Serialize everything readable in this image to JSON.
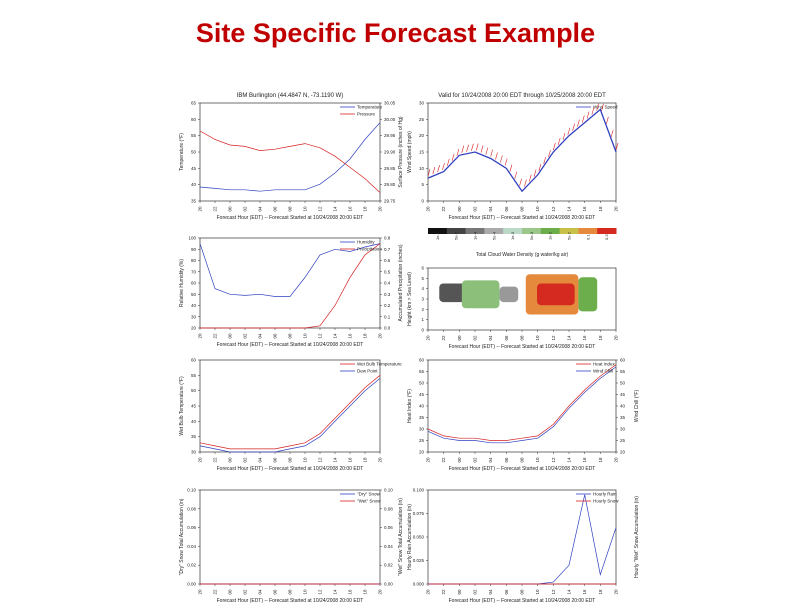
{
  "slide_title": "Site Specific Forecast Example",
  "colors": {
    "title": "#c00000",
    "red_series": "#d62020",
    "blue_series": "#3040c0"
  },
  "chart_data": [
    {
      "id": "temp_pressure",
      "type": "line",
      "title": "IBM Burlington (44.4847 N, -73.1190 W)",
      "xlabel": "Forecast Hour (EDT) -- Forecast Started at 10/24/2008 20:00 EDT",
      "ylabel": "Temperature (°F)",
      "y2label": "Surface Pressure (inches of Hg)",
      "x_ticks": [
        "20",
        "22",
        "00",
        "02",
        "04",
        "06",
        "08",
        "10",
        "12",
        "14",
        "16",
        "18",
        "20"
      ],
      "ylim": [
        30,
        65
      ],
      "y_ticks": [
        "35",
        "40",
        "45",
        "50",
        "55",
        "60",
        "65"
      ],
      "y2_ticks": [
        "29.75",
        "29.80",
        "29.85",
        "29.90",
        "29.95",
        "30.00",
        "30.05"
      ],
      "series": [
        {
          "name": "Temperature",
          "color": "blue",
          "values": [
            35,
            34.5,
            34,
            34,
            33.5,
            34,
            34,
            34,
            36,
            40,
            45,
            52,
            58
          ]
        },
        {
          "name": "Pressure",
          "color": "red",
          "values": [
            55,
            52,
            50,
            49.5,
            48,
            48.5,
            49.5,
            50.5,
            49,
            46,
            42,
            38,
            33
          ]
        }
      ]
    },
    {
      "id": "wind",
      "type": "line",
      "title": "Valid for 10/24/2008 20:00 EDT through 10/25/2008 20:00 EDT",
      "xlabel": "Forecast Hour (EDT) -- Forecast Started at 10/24/2008 20:00 EDT",
      "ylabel": "Wind Speed (mph)",
      "x_ticks": [
        "20",
        "22",
        "00",
        "02",
        "04",
        "06",
        "08",
        "10",
        "12",
        "14",
        "16",
        "18",
        "20"
      ],
      "ylim": [
        0,
        30
      ],
      "y_ticks": [
        "0",
        "5",
        "10",
        "15",
        "20",
        "25",
        "30"
      ],
      "series": [
        {
          "name": "Wind Speed",
          "color": "blue",
          "values": [
            7,
            9,
            14,
            15,
            13,
            10,
            3,
            8,
            15,
            20,
            24,
            28,
            15
          ]
        }
      ]
    },
    {
      "id": "humidity_precip",
      "type": "line",
      "xlabel": "Forecast Hour (EDT) -- Forecast Started at 10/24/2008 20:00 EDT",
      "ylabel": "Relative Humidity (%)",
      "y2label": "Accumulated Precipitation (inches)",
      "x_ticks": [
        "20",
        "22",
        "00",
        "02",
        "04",
        "06",
        "08",
        "10",
        "12",
        "14",
        "16",
        "18",
        "20"
      ],
      "ylim": [
        20,
        100
      ],
      "y_ticks": [
        "20",
        "30",
        "40",
        "50",
        "60",
        "70",
        "80",
        "90",
        "100"
      ],
      "y2_ticks": [
        "0.0",
        "0.1",
        "0.2",
        "0.3",
        "0.4",
        "0.5",
        "0.6",
        "0.7",
        "0.8"
      ],
      "series": [
        {
          "name": "Humidity",
          "color": "blue",
          "values": [
            95,
            55,
            50,
            49,
            50,
            48,
            48,
            65,
            85,
            90,
            88,
            92,
            95
          ]
        },
        {
          "name": "Precipitation",
          "color": "red",
          "values": [
            20,
            20,
            20,
            20,
            20,
            20,
            20,
            20,
            22,
            40,
            65,
            85,
            95
          ]
        }
      ]
    },
    {
      "id": "cloud_water",
      "type": "heatmap",
      "colorbar_label": "Total Cloud Water Density (g water/kg air)",
      "colorbar_ticks": [
        "1e-5",
        "5e-5",
        "1e-4",
        "5e-4",
        "1e-3",
        "5e-3",
        "1e-2",
        "5e-2",
        "0.1",
        "0.3"
      ],
      "xlabel": "Forecast Hour (EDT) -- Forecast Started at 10/24/2008 20:00 EDT",
      "ylabel": "Height (km > Sea Level)",
      "x_ticks": [
        "20",
        "22",
        "00",
        "02",
        "04",
        "06",
        "08",
        "10",
        "12",
        "14",
        "16",
        "18",
        "20"
      ],
      "y_ticks": [
        "0",
        "1",
        "2",
        "3",
        "4",
        "5",
        "6"
      ]
    },
    {
      "id": "wetbulb",
      "type": "line",
      "xlabel": "Forecast Hour (EDT) -- Forecast Started at 10/24/2008 20:00 EDT",
      "ylabel": "Wet Bulb Temperature (°F)",
      "x_ticks": [
        "20",
        "22",
        "00",
        "02",
        "04",
        "06",
        "08",
        "10",
        "12",
        "14",
        "16",
        "18",
        "20"
      ],
      "ylim": [
        30,
        60
      ],
      "y_ticks": [
        "30",
        "35",
        "40",
        "45",
        "50",
        "55",
        "60"
      ],
      "series": [
        {
          "name": "Wet Bulb Temperature",
          "color": "red",
          "values": [
            33,
            32,
            31,
            31,
            31,
            31,
            32,
            33,
            36,
            41,
            46,
            51,
            55
          ]
        },
        {
          "name": "Dew Point",
          "color": "blue",
          "values": [
            32,
            31,
            30,
            30,
            30,
            30,
            31,
            32,
            35,
            40,
            45,
            50,
            54
          ]
        }
      ]
    },
    {
      "id": "heat_wind_chill",
      "type": "line",
      "xlabel": "Forecast Hour (EDT) -- Forecast Started at 10/24/2008 20:00 EDT",
      "ylabel": "Heat Index (°F)",
      "y2label": "Wind Chill (°F)",
      "x_ticks": [
        "20",
        "22",
        "00",
        "02",
        "04",
        "06",
        "08",
        "10",
        "12",
        "14",
        "16",
        "18",
        "20"
      ],
      "ylim": [
        20,
        60
      ],
      "y_ticks": [
        "20",
        "25",
        "30",
        "35",
        "40",
        "45",
        "50",
        "55",
        "60"
      ],
      "y2_ticks": [
        "20",
        "25",
        "30",
        "35",
        "40",
        "45",
        "50",
        "55",
        "60"
      ],
      "series": [
        {
          "name": "Heat Index",
          "color": "red",
          "values": [
            30,
            27,
            26,
            26,
            25,
            25,
            26,
            27,
            32,
            40,
            47,
            53,
            58
          ]
        },
        {
          "name": "Wind Chill",
          "color": "blue",
          "values": [
            29,
            26,
            25,
            25,
            24,
            24,
            25,
            26,
            31,
            39,
            46,
            52,
            57
          ]
        }
      ]
    },
    {
      "id": "snow",
      "type": "line",
      "xlabel": "Forecast Hour (EDT) -- Forecast Started at 10/24/2008 20:00 EDT",
      "ylabel": "\"Dry\" Snow Total Accumulation (in)",
      "y2label": "\"Wet\" Snow Total Accumulation (in)",
      "x_ticks": [
        "20",
        "22",
        "00",
        "02",
        "04",
        "06",
        "08",
        "10",
        "12",
        "14",
        "16",
        "18",
        "20"
      ],
      "ylim": [
        0,
        0.1
      ],
      "y_ticks": [
        "0.00",
        "0.02",
        "0.04",
        "0.06",
        "0.08",
        "0.10"
      ],
      "y2_ticks": [
        "0.00",
        "0.02",
        "0.04",
        "0.06",
        "0.08",
        "0.10"
      ],
      "series": [
        {
          "name": "\"Dry\" Snow",
          "color": "blue",
          "values": [
            0,
            0,
            0,
            0,
            0,
            0,
            0,
            0,
            0,
            0,
            0,
            0,
            0
          ]
        },
        {
          "name": "\"Wet\" Snow",
          "color": "red",
          "values": [
            0,
            0,
            0,
            0,
            0,
            0,
            0,
            0,
            0,
            0,
            0,
            0,
            0
          ]
        }
      ]
    },
    {
      "id": "hourly_rain_snow",
      "type": "line",
      "xlabel": "Forecast Hour (EDT) -- Forecast Started at 10/24/2008 20:00 EDT",
      "ylabel": "Hourly Rain Accumulation (in)",
      "y2label": "Hourly \"Wet\" Snow Accumulation (in)",
      "x_ticks": [
        "20",
        "22",
        "00",
        "02",
        "04",
        "06",
        "08",
        "10",
        "12",
        "14",
        "16",
        "18",
        "20"
      ],
      "ylim": [
        0,
        0.1
      ],
      "y_ticks": [
        "0.000",
        "0.025",
        "0.050",
        "0.075",
        "0.100"
      ],
      "series": [
        {
          "name": "Hourly Rain",
          "color": "blue",
          "values": [
            0,
            0,
            0,
            0,
            0,
            0,
            0,
            0,
            0.002,
            0.02,
            0.095,
            0.01,
            0.06
          ]
        },
        {
          "name": "Hourly Snow",
          "color": "red",
          "values": [
            0,
            0,
            0,
            0,
            0,
            0,
            0,
            0,
            0,
            0,
            0,
            0,
            0
          ]
        }
      ]
    }
  ]
}
